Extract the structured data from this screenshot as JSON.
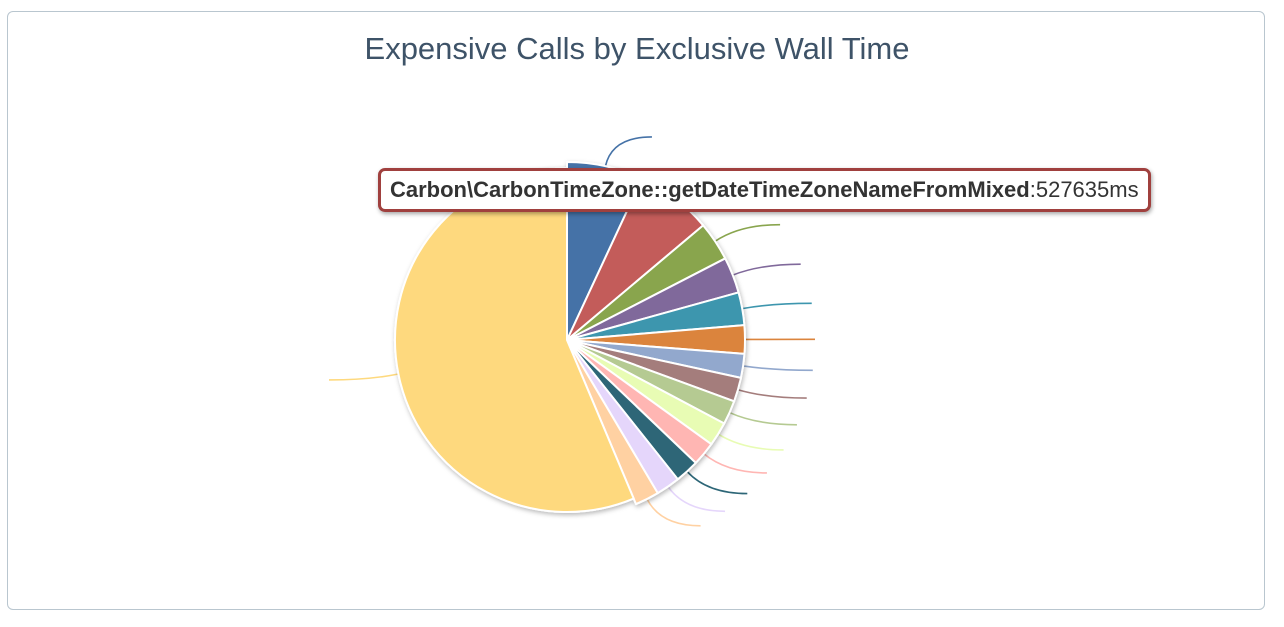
{
  "chart_data": {
    "type": "pie",
    "title": "Expensive Calls by Exclusive Wall Time",
    "slices": [
      {
        "value": 7.0,
        "color": "#4572a7"
      },
      {
        "value": 7.0,
        "color": "#c35c5a"
      },
      {
        "value": 3.6,
        "color": "#89a54e"
      },
      {
        "value": 3.3,
        "color": "#80699b"
      },
      {
        "value": 3.0,
        "color": "#3d96ae"
      },
      {
        "value": 2.6,
        "color": "#db843d"
      },
      {
        "value": 2.2,
        "color": "#92a8cd"
      },
      {
        "value": 2.2,
        "color": "#a47d7c"
      },
      {
        "value": 2.2,
        "color": "#b5ca92"
      },
      {
        "value": 2.2,
        "color": "#e8fcb4"
      },
      {
        "value": 2.2,
        "color": "#ffb6b3"
      },
      {
        "value": 2.2,
        "color": "#2d6677"
      },
      {
        "value": 2.2,
        "color": "#e5d6fb"
      },
      {
        "value": 2.2,
        "color": "#ffd1a2"
      },
      {
        "value": 56.9,
        "color": "#fed97e",
        "name": "Carbon\\CarbonTimeZone::getDateTimeZoneNameFromMixed",
        "value_label": "527635ms"
      }
    ]
  },
  "tooltip": {
    "name": "Carbon\\CarbonTimeZone::getDateTimeZoneNameFromMixed",
    "separator": " : ",
    "value": "527635ms",
    "border_color": "#a0403e"
  }
}
